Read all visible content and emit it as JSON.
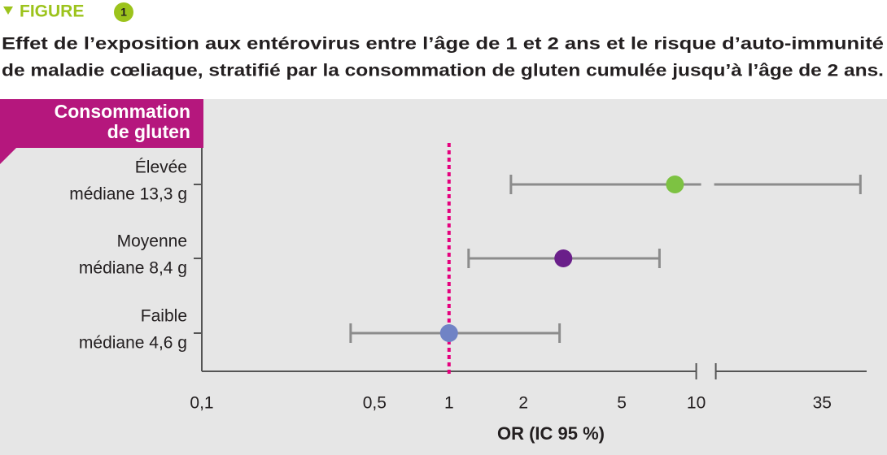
{
  "header": {
    "label": "FIGURE",
    "number": "1"
  },
  "chart_data": {
    "type": "forest",
    "title": [
      "Effet de l’exposition aux entérovirus entre l’âge de 1 et 2 ans et le risque d’auto-immunité",
      "de maladie cœliaque, stratifié par la consommation de gluten cumulée jusqu’à l’âge de 2 ans."
    ],
    "y_axis_label": [
      "Consommation",
      "de gluten"
    ],
    "x_axis_label": "OR (IC 95 %)",
    "categories": [
      [
        "Élevée",
        "médiane 13,3 g"
      ],
      [
        "Moyenne",
        "médiane 8,4 g"
      ],
      [
        "Faible",
        "médiane 4,6 g"
      ]
    ],
    "values": [
      8.2,
      2.9,
      1.0
    ],
    "ci_low": [
      1.78,
      1.2,
      0.4
    ],
    "ci_high": [
      50,
      7.1,
      2.8
    ],
    "colors": [
      "#7dc242",
      "#6a1f8a",
      "#7083c5"
    ],
    "ci_color": "#8c8c8c",
    "xscale": "log",
    "xlim": [
      0.1,
      53
    ],
    "xticks": [
      {
        "value": 0.1,
        "label": "0,1"
      },
      {
        "value": 0.5,
        "label": "0,5"
      },
      1,
      2,
      5,
      10,
      35
    ],
    "axis_break": [
      10,
      13
    ],
    "ref_line": 1,
    "ref_color": "#e5007e"
  }
}
